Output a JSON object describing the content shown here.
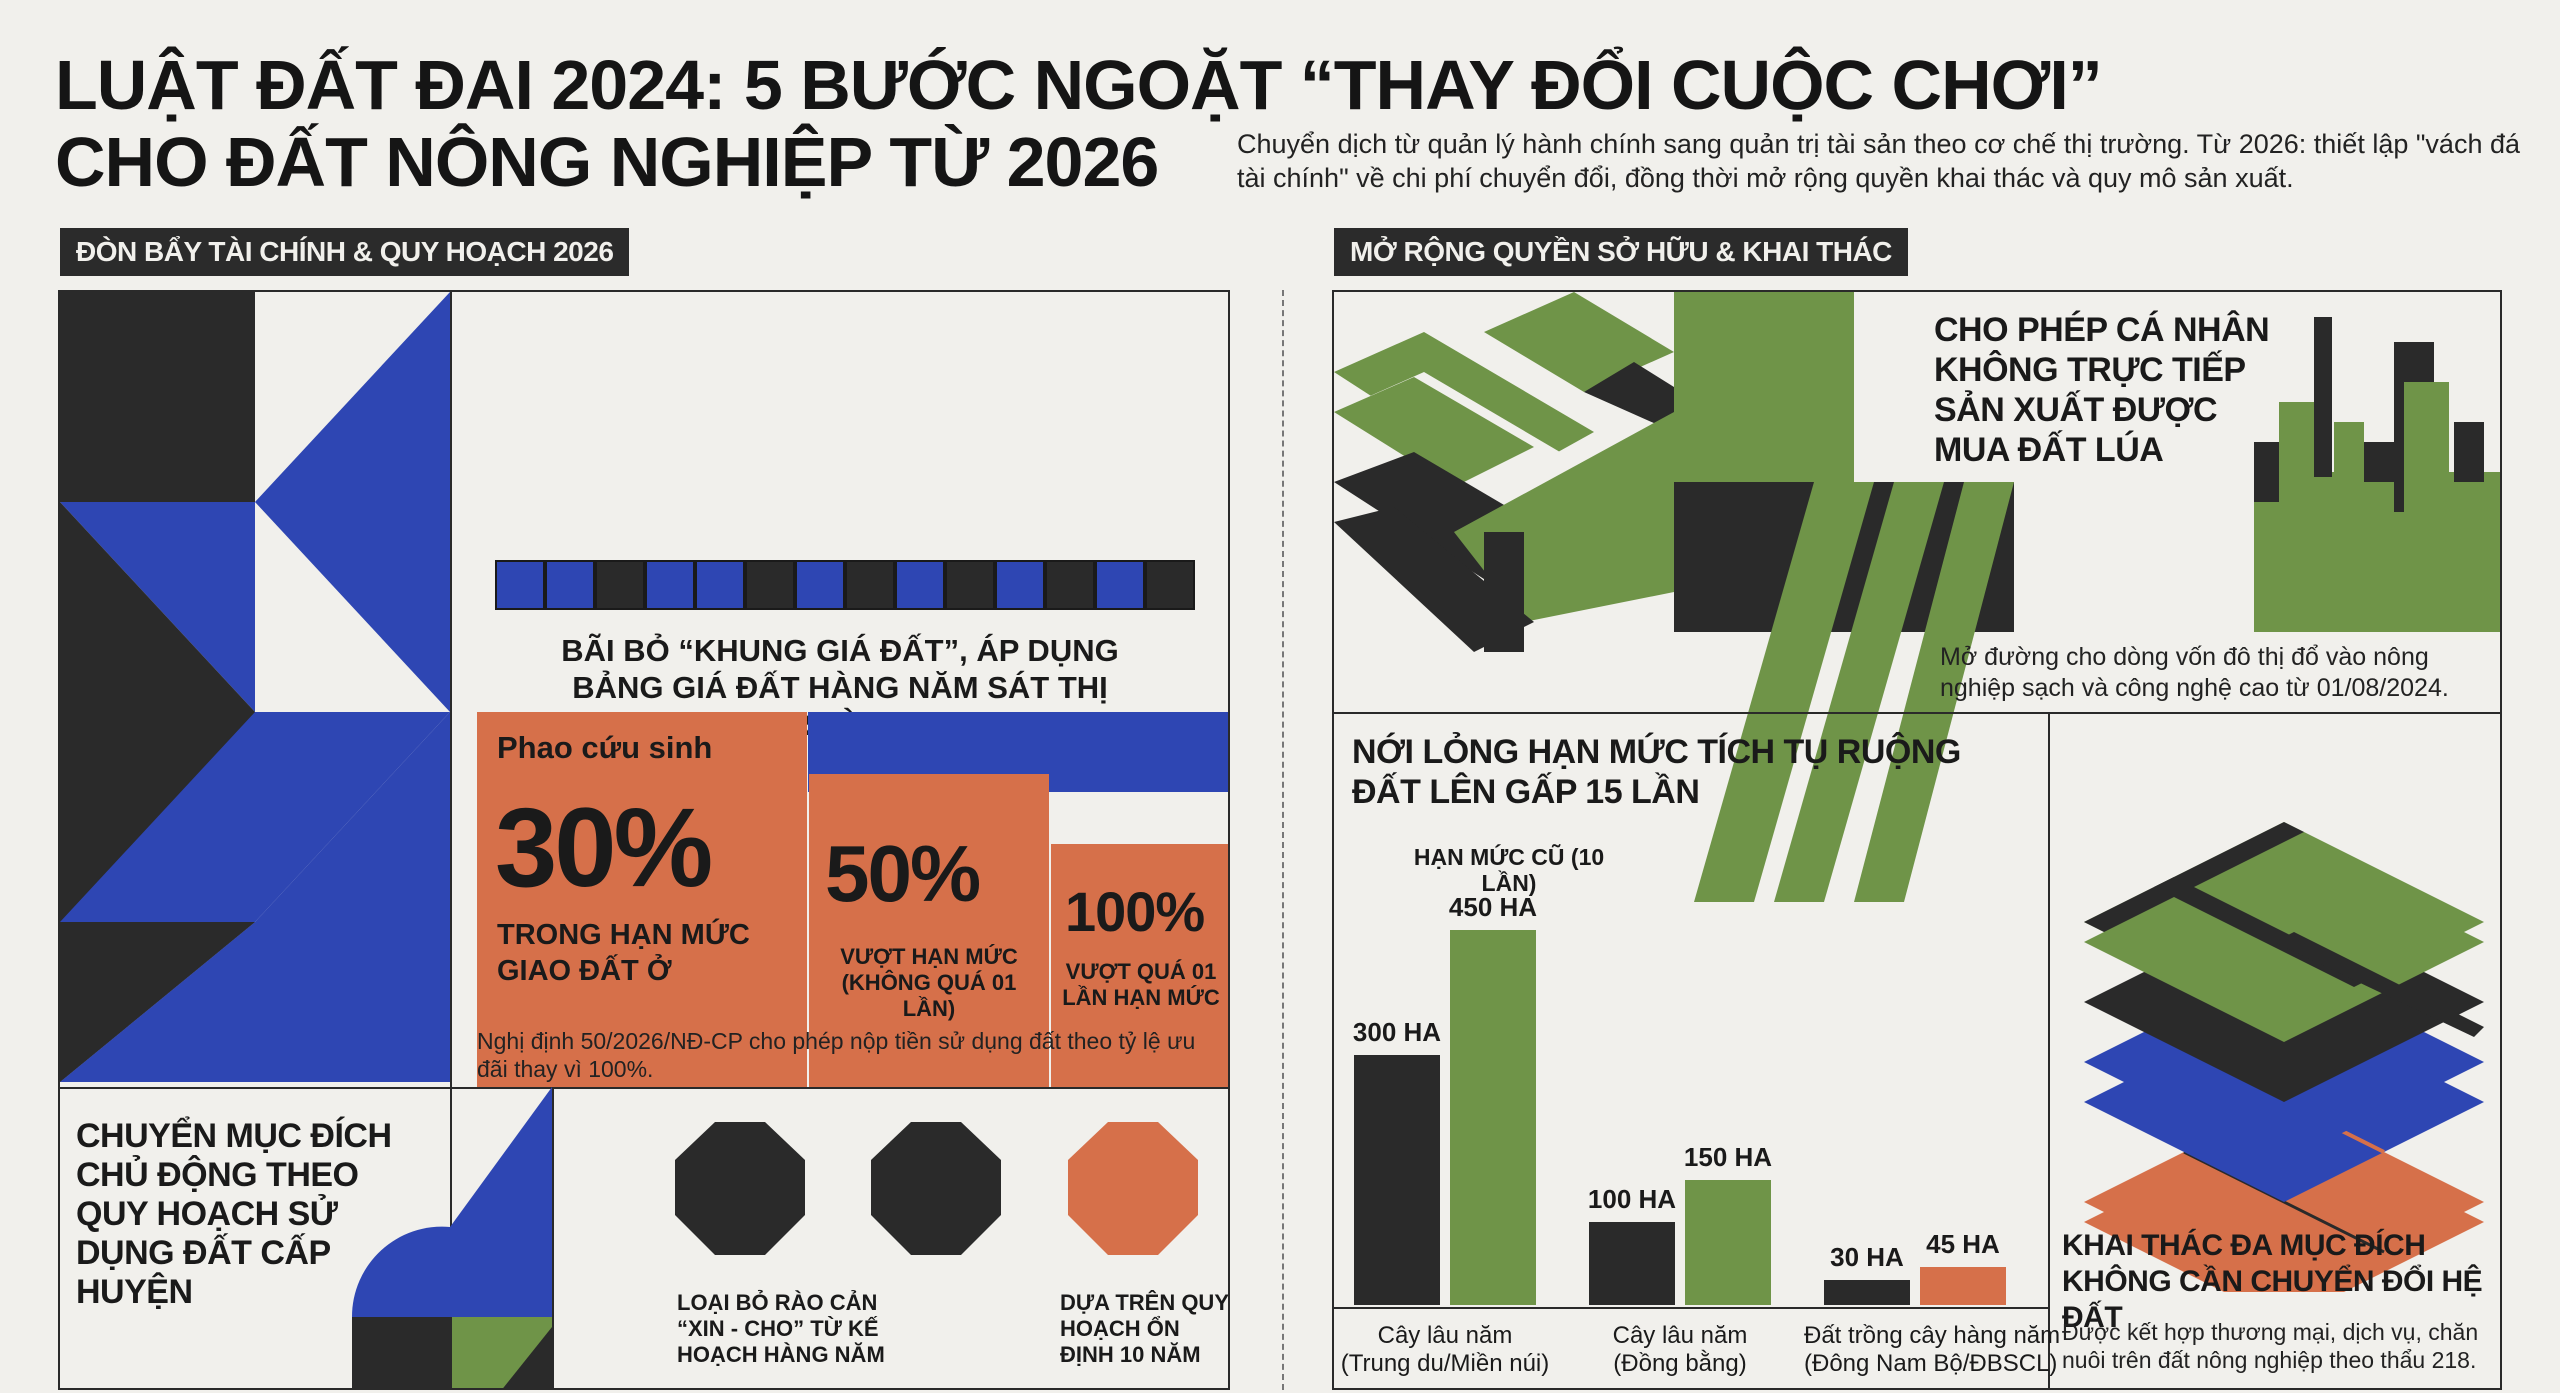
{
  "header": {
    "title_line1": "LUẬT ĐẤT ĐAI 2024: 5 BƯỚC NGOẶT “THAY ĐỔI CUỘC CHƠI”",
    "title_line2": "CHO ĐẤT NÔNG NGHIỆP TỪ 2026",
    "subtitle": "Chuyển dịch từ quản lý hành chính sang quản trị tài sản theo cơ chế thị trường. Từ 2026: thiết lập \"vách đá tài chính\" về chi phí chuyển đổi, đồng thời mở rộng quyền khai thác và quy mô sản xuất."
  },
  "left_section": {
    "tag": "ĐÒN BẨY TÀI CHÍNH & QUY HOẠCH 2026",
    "price_frame_text": "BÃI BỎ “KHUNG GIÁ ĐẤT”, ÁP DỤNG BẢNG GIÁ ĐẤT HÀNG NĂM SÁT THỊ TRƯỜNG",
    "lifebuoy_label": "Phao cứu sinh",
    "rates": [
      {
        "value": "30%",
        "label": "TRONG HẠN MỨC GIAO ĐẤT Ở"
      },
      {
        "value": "50%",
        "label": "VƯỢT HẠN MỨC (KHÔNG QUÁ 01 LẦN)"
      },
      {
        "value": "100%",
        "label": "VƯỢT QUÁ 01 LẦN HẠN MỨC"
      }
    ],
    "decree_note": "Nghị định 50/2026/NĐ-CP cho phép nộp tiền sử dụng đất theo tỷ lệ ưu đãi thay vì 100%.",
    "conversion_title": "CHUYỂN MỤC ĐÍCH CHỦ ĐỘNG THEO QUY HOẠCH SỬ DỤNG ĐẤT CẤP HUYỆN",
    "octagon_labels": [
      "LOẠI BỎ RÀO CẢN “XIN - CHO” TỪ KẾ HOẠCH HÀNG NĂM",
      "DỰA TRÊN QUY HOẠCH ỔN ĐỊNH 10 NĂM"
    ]
  },
  "right_section": {
    "tag": "MỞ RỘNG QUYỀN SỞ HỮU & KHAI THÁC",
    "individual_title": "CHO PHÉP CÁ NHÂN KHÔNG TRỰC TIẾP SẢN XUẤT ĐƯỢC MUA ĐẤT LÚA",
    "individual_note": "Mở đường cho dòng vốn đô thị đổ vào nông nghiệp sạch và công nghệ cao từ 01/08/2024.",
    "limit_title": "NỚI LỎNG HẠN MỨC TÍCH TỤ RUỘNG ĐẤT LÊN GẤP 15 LẦN",
    "multiuse_title": "KHAI THÁC ĐA MỤC ĐÍCH KHÔNG CẦN CHUYỂN ĐỔI HỆ ĐẤT",
    "multiuse_note": "Được kết hợp thương mại, dịch vụ, chăn nuôi trên đất nông nghiệp theo thẩu 218."
  },
  "chart_data": {
    "type": "bar",
    "title": "NỚI LỎNG HẠN MỨC TÍCH TỤ RUỘNG ĐẤT LÊN GẤP 15 LẦN",
    "annotation": "HẠN MỨC CŨ (10 LẦN)",
    "categories": [
      "Cây lâu năm (Trung du/Miền núi)",
      "Cây lâu năm (Đồng bằng)",
      "Đất trồng cây hàng năm (Đông Nam Bộ/ĐBSCL)"
    ],
    "series": [
      {
        "values": [
          300,
          100,
          30
        ],
        "labels": [
          "300 HA",
          "100 HA",
          "30 HA"
        ]
      },
      {
        "values": [
          450,
          150,
          45
        ],
        "labels": [
          "450 HA",
          "150 HA",
          "45 HA"
        ]
      }
    ],
    "ylim": [
      0,
      450
    ],
    "colors": [
      "#2a2a2a",
      "#6f9448",
      "#d6704a"
    ]
  }
}
